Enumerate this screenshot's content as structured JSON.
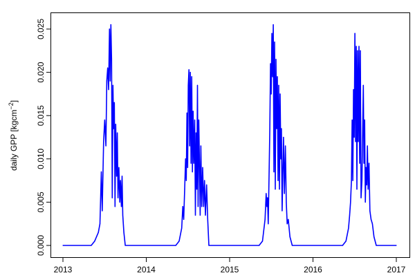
{
  "chart_data": {
    "type": "line",
    "title": "",
    "xlabel": "",
    "ylabel": "daily GPP [kgcm",
    "ylabel_superscript": "−2",
    "ylabel_suffix": "]",
    "xlim": [
      "2013-01-01",
      "2017-01-01"
    ],
    "ylim": [
      0,
      0.025
    ],
    "x_ticks": [
      "2013",
      "2014",
      "2015",
      "2016",
      "2017"
    ],
    "y_ticks": [
      "0.000",
      "0.005",
      "0.010",
      "0.015",
      "0.020",
      "0.025"
    ],
    "grid": false,
    "legend": "none",
    "series": [
      {
        "color": "#0000ff",
        "points": [
          [
            "2013-01-01",
            0
          ],
          [
            "2013-05-05",
            0
          ],
          [
            "2013-05-20",
            0.0005
          ],
          [
            "2013-06-05",
            0.0015
          ],
          [
            "2013-06-12",
            0.0025
          ],
          [
            "2013-06-18",
            0.0085
          ],
          [
            "2013-06-22",
            0.004
          ],
          [
            "2013-06-28",
            0.012
          ],
          [
            "2013-07-03",
            0.0145
          ],
          [
            "2013-07-08",
            0.0115
          ],
          [
            "2013-07-12",
            0.019
          ],
          [
            "2013-07-16",
            0.0205
          ],
          [
            "2013-07-20",
            0.018
          ],
          [
            "2013-07-24",
            0.025
          ],
          [
            "2013-07-27",
            0.019
          ],
          [
            "2013-07-30",
            0.0255
          ],
          [
            "2013-08-02",
            0.0215
          ],
          [
            "2013-08-05",
            0.0055
          ],
          [
            "2013-08-08",
            0.0185
          ],
          [
            "2013-08-11",
            0.0135
          ],
          [
            "2013-08-14",
            0.0165
          ],
          [
            "2013-08-17",
            0.0045
          ],
          [
            "2013-08-20",
            0.014
          ],
          [
            "2013-08-24",
            0.008
          ],
          [
            "2013-08-27",
            0.013
          ],
          [
            "2013-08-30",
            0.0055
          ],
          [
            "2013-09-03",
            0.009
          ],
          [
            "2013-09-07",
            0.005
          ],
          [
            "2013-09-10",
            0.0075
          ],
          [
            "2013-09-14",
            0.0045
          ],
          [
            "2013-09-17",
            0.008
          ],
          [
            "2013-09-20",
            0.0035
          ],
          [
            "2013-09-25",
            0.0015
          ],
          [
            "2013-10-01",
            0
          ],
          [
            "2014-05-10",
            0
          ],
          [
            "2014-05-25",
            0.0005
          ],
          [
            "2014-06-05",
            0.002
          ],
          [
            "2014-06-10",
            0.0045
          ],
          [
            "2014-06-14",
            0.003
          ],
          [
            "2014-06-18",
            0.0065
          ],
          [
            "2014-06-22",
            0.01
          ],
          [
            "2014-06-25",
            0.0075
          ],
          [
            "2014-06-28",
            0.0153
          ],
          [
            "2014-07-01",
            0.009
          ],
          [
            "2014-07-04",
            0.0185
          ],
          [
            "2014-07-07",
            0.0203
          ],
          [
            "2014-07-10",
            0.0115
          ],
          [
            "2014-07-13",
            0.02
          ],
          [
            "2014-07-16",
            0.0095
          ],
          [
            "2014-07-19",
            0.0195
          ],
          [
            "2014-07-22",
            0.0085
          ],
          [
            "2014-07-25",
            0.0155
          ],
          [
            "2014-07-28",
            0.0095
          ],
          [
            "2014-08-01",
            0.0145
          ],
          [
            "2014-08-04",
            0.0035
          ],
          [
            "2014-08-07",
            0.013
          ],
          [
            "2014-08-10",
            0.0065
          ],
          [
            "2014-08-13",
            0.0185
          ],
          [
            "2014-08-16",
            0.0045
          ],
          [
            "2014-08-19",
            0.0145
          ],
          [
            "2014-08-22",
            0.0095
          ],
          [
            "2014-08-25",
            0.0035
          ],
          [
            "2014-08-28",
            0.0115
          ],
          [
            "2014-09-01",
            0.0045
          ],
          [
            "2014-09-05",
            0.009
          ],
          [
            "2014-09-09",
            0.0045
          ],
          [
            "2014-09-13",
            0.0075
          ],
          [
            "2014-09-17",
            0.0035
          ],
          [
            "2014-09-22",
            0.007
          ],
          [
            "2014-09-27",
            0.003
          ],
          [
            "2014-10-02",
            0
          ],
          [
            "2015-05-10",
            0
          ],
          [
            "2015-05-25",
            0.0005
          ],
          [
            "2015-06-05",
            0.003
          ],
          [
            "2015-06-10",
            0.006
          ],
          [
            "2015-06-13",
            0.0045
          ],
          [
            "2015-06-16",
            0.0055
          ],
          [
            "2015-06-19",
            0.0025
          ],
          [
            "2015-06-23",
            0.0085
          ],
          [
            "2015-06-26",
            0.0135
          ],
          [
            "2015-06-29",
            0.021
          ],
          [
            "2015-07-02",
            0.0175
          ],
          [
            "2015-07-05",
            0.0245
          ],
          [
            "2015-07-08",
            0.0195
          ],
          [
            "2015-07-11",
            0.0255
          ],
          [
            "2015-07-14",
            0.0085
          ],
          [
            "2015-07-17",
            0.0235
          ],
          [
            "2015-07-20",
            0.0065
          ],
          [
            "2015-07-23",
            0.0215
          ],
          [
            "2015-07-26",
            0.0135
          ],
          [
            "2015-07-29",
            0.0195
          ],
          [
            "2015-08-01",
            0.0075
          ],
          [
            "2015-08-04",
            0.0185
          ],
          [
            "2015-08-07",
            0.0065
          ],
          [
            "2015-08-10",
            0.0175
          ],
          [
            "2015-08-13",
            0.01
          ],
          [
            "2015-08-16",
            0.0135
          ],
          [
            "2015-08-19",
            0.004
          ],
          [
            "2015-08-22",
            0.0085
          ],
          [
            "2015-08-25",
            0.0125
          ],
          [
            "2015-08-29",
            0.006
          ],
          [
            "2015-09-02",
            0.0115
          ],
          [
            "2015-09-06",
            0.005
          ],
          [
            "2015-09-10",
            0.0025
          ],
          [
            "2015-09-15",
            0.003
          ],
          [
            "2015-09-22",
            0.001
          ],
          [
            "2015-10-02",
            0
          ],
          [
            "2016-05-10",
            0
          ],
          [
            "2016-05-25",
            0.0005
          ],
          [
            "2016-06-05",
            0.002
          ],
          [
            "2016-06-10",
            0.0035
          ],
          [
            "2016-06-14",
            0.005
          ],
          [
            "2016-06-18",
            0.0075
          ],
          [
            "2016-06-21",
            0.0145
          ],
          [
            "2016-06-24",
            0.0075
          ],
          [
            "2016-06-27",
            0.018
          ],
          [
            "2016-06-30",
            0.0125
          ],
          [
            "2016-07-03",
            0.0245
          ],
          [
            "2016-07-06",
            0.012
          ],
          [
            "2016-07-09",
            0.023
          ],
          [
            "2016-07-12",
            0.0065
          ],
          [
            "2016-07-15",
            0.0225
          ],
          [
            "2016-07-18",
            0.012
          ],
          [
            "2016-07-21",
            0.023
          ],
          [
            "2016-07-24",
            0.0095
          ],
          [
            "2016-07-27",
            0.0225
          ],
          [
            "2016-07-30",
            0.0055
          ],
          [
            "2016-08-03",
            0.0075
          ],
          [
            "2016-08-06",
            0.013
          ],
          [
            "2016-08-09",
            0.0185
          ],
          [
            "2016-08-12",
            0.0095
          ],
          [
            "2016-08-15",
            0.0145
          ],
          [
            "2016-08-18",
            0.005
          ],
          [
            "2016-08-21",
            0.009
          ],
          [
            "2016-08-24",
            0.007
          ],
          [
            "2016-08-27",
            0.0115
          ],
          [
            "2016-08-30",
            0.0065
          ],
          [
            "2016-09-03",
            0.0095
          ],
          [
            "2016-09-07",
            0.004
          ],
          [
            "2016-09-12",
            0.003
          ],
          [
            "2016-09-18",
            0.0025
          ],
          [
            "2016-09-25",
            0.001
          ],
          [
            "2016-10-05",
            0
          ],
          [
            "2017-01-01",
            0
          ]
        ]
      }
    ]
  }
}
